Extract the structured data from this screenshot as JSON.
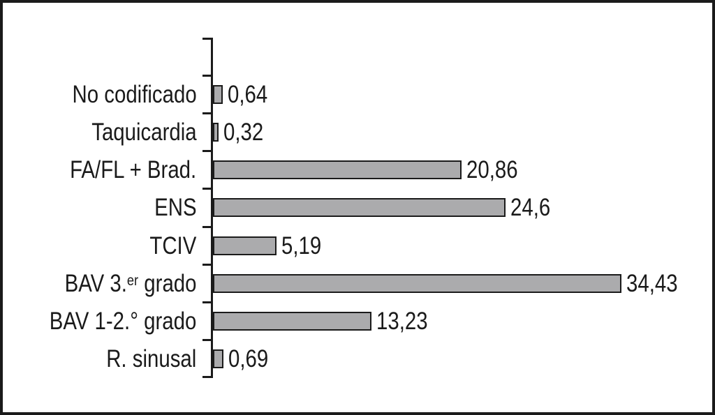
{
  "figure": {
    "background_color": "#FFFFFF",
    "frame_color": "#1B1B1B"
  },
  "chart_data": {
    "type": "bar",
    "orientation": "horizontal",
    "title": "",
    "xlabel": "",
    "ylabel": "",
    "xlim": [
      0,
      40
    ],
    "grid": false,
    "legend": false,
    "bar_color": "#ABABAD",
    "bar_border_color": "#1B1B1B",
    "axis_color": "#1B1B1B",
    "text_color": "#1A1A1A",
    "categories": [
      "No codificado",
      "Taquicardia",
      "FA/FL + Brad.",
      "ENS",
      "TCIV",
      "BAV 3.er grado",
      "BAV 1-2.° grado",
      "R. sinusal"
    ],
    "category_rich": [
      [
        {
          "t": "No codificado"
        }
      ],
      [
        {
          "t": "Taquicardia"
        }
      ],
      [
        {
          "t": "FA/FL + Brad."
        }
      ],
      [
        {
          "t": "ENS"
        }
      ],
      [
        {
          "t": "TCIV"
        }
      ],
      [
        {
          "t": "BAV 3."
        },
        {
          "t": "er",
          "sup": true
        },
        {
          "t": " grado"
        }
      ],
      [
        {
          "t": "BAV 1-2.° grado"
        }
      ],
      [
        {
          "t": "R. sinusal"
        }
      ]
    ],
    "values": [
      0.64,
      0.32,
      20.86,
      24.6,
      5.19,
      34.43,
      13.23,
      0.69
    ],
    "value_labels": [
      "0,64",
      "0,32",
      "20,86",
      "24,6",
      "5,19",
      "34,43",
      "13,23",
      "0,69"
    ]
  }
}
